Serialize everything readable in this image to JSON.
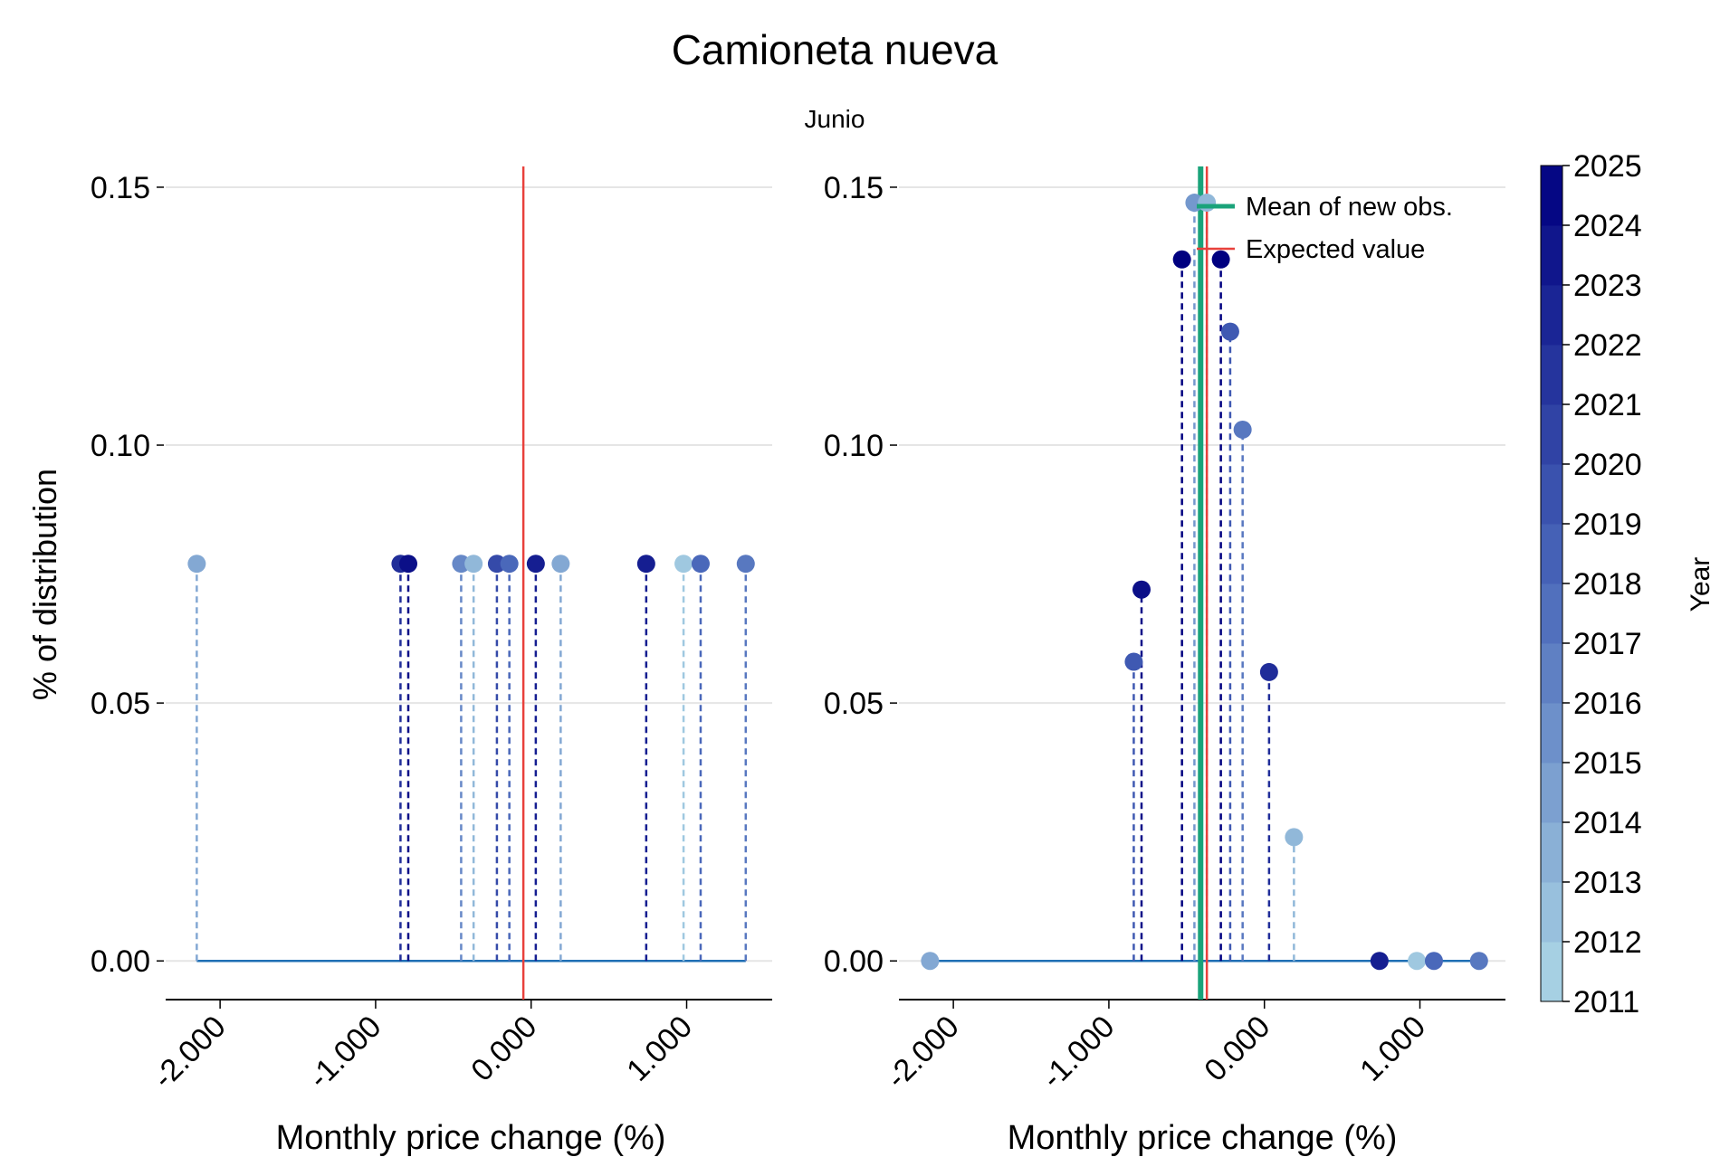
{
  "chart_data": {
    "type": "scatter",
    "title": "Camioneta nueva",
    "subtitle": "Junio",
    "colors": {
      "dot_low": "#add8e6",
      "dot_high": "#000080",
      "baseline": "#1f6fb4",
      "expected": "#e8413c",
      "mean": "#1aa37a",
      "grid": "#e5e5e5"
    },
    "xlim": [
      -2.35,
      1.55
    ],
    "ylim": [
      -0.0075,
      0.1535
    ],
    "xticks": [
      "-2.000",
      "-1.000",
      "0.000",
      "1.000"
    ],
    "yticks": [
      "0.00",
      "0.05",
      "0.10",
      "0.15"
    ],
    "colorbar": {
      "label": "Year",
      "range": [
        2011,
        2025
      ],
      "ticks": [
        "2011",
        "2012",
        "2013",
        "2014",
        "2015",
        "2016",
        "2017",
        "2018",
        "2019",
        "2020",
        "2021",
        "2022",
        "2023",
        "2024",
        "2025"
      ]
    },
    "panels": [
      {
        "xlabel": "Monthly price change (%)",
        "ylabel": "% of distribution",
        "baseline_range": [
          -2.15,
          1.38
        ],
        "expected_value": -0.05,
        "points": [
          {
            "x": -2.15,
            "y": 0.077,
            "year": 2014
          },
          {
            "x": -0.84,
            "y": 0.077,
            "year": 2022
          },
          {
            "x": -0.79,
            "y": 0.077,
            "year": 2024
          },
          {
            "x": -0.45,
            "y": 0.077,
            "year": 2016
          },
          {
            "x": -0.37,
            "y": 0.077,
            "year": 2013
          },
          {
            "x": -0.22,
            "y": 0.077,
            "year": 2020
          },
          {
            "x": -0.14,
            "y": 0.077,
            "year": 2018
          },
          {
            "x": 0.03,
            "y": 0.077,
            "year": 2023
          },
          {
            "x": 0.19,
            "y": 0.077,
            "year": 2014
          },
          {
            "x": 0.74,
            "y": 0.077,
            "year": 2023
          },
          {
            "x": 0.98,
            "y": 0.077,
            "year": 2012
          },
          {
            "x": 1.09,
            "y": 0.077,
            "year": 2018
          },
          {
            "x": 1.38,
            "y": 0.077,
            "year": 2017
          }
        ]
      },
      {
        "xlabel": "Monthly price change (%)",
        "ylabel": "",
        "baseline_range": [
          -2.15,
          1.38
        ],
        "expected_value": -0.37,
        "mean_new_obs": -0.41,
        "legend": [
          {
            "label": "Mean of new obs.",
            "kind": "mean"
          },
          {
            "label": "Expected value",
            "kind": "expected"
          }
        ],
        "points": [
          {
            "x": -2.15,
            "y": 0.0,
            "year": 2014
          },
          {
            "x": -0.84,
            "y": 0.058,
            "year": 2019
          },
          {
            "x": -0.79,
            "y": 0.072,
            "year": 2024
          },
          {
            "x": -0.53,
            "y": 0.136,
            "year": 2025
          },
          {
            "x": -0.45,
            "y": 0.147,
            "year": 2015
          },
          {
            "x": -0.37,
            "y": 0.147,
            "year": 2013
          },
          {
            "x": -0.28,
            "y": 0.136,
            "year": 2025
          },
          {
            "x": -0.22,
            "y": 0.122,
            "year": 2019
          },
          {
            "x": -0.14,
            "y": 0.103,
            "year": 2017
          },
          {
            "x": 0.03,
            "y": 0.056,
            "year": 2022
          },
          {
            "x": 0.19,
            "y": 0.024,
            "year": 2013
          },
          {
            "x": 0.74,
            "y": 0.0,
            "year": 2023
          },
          {
            "x": 0.98,
            "y": 0.0,
            "year": 2012
          },
          {
            "x": 1.09,
            "y": 0.0,
            "year": 2018
          },
          {
            "x": 1.38,
            "y": 0.0,
            "year": 2017
          }
        ]
      }
    ]
  }
}
